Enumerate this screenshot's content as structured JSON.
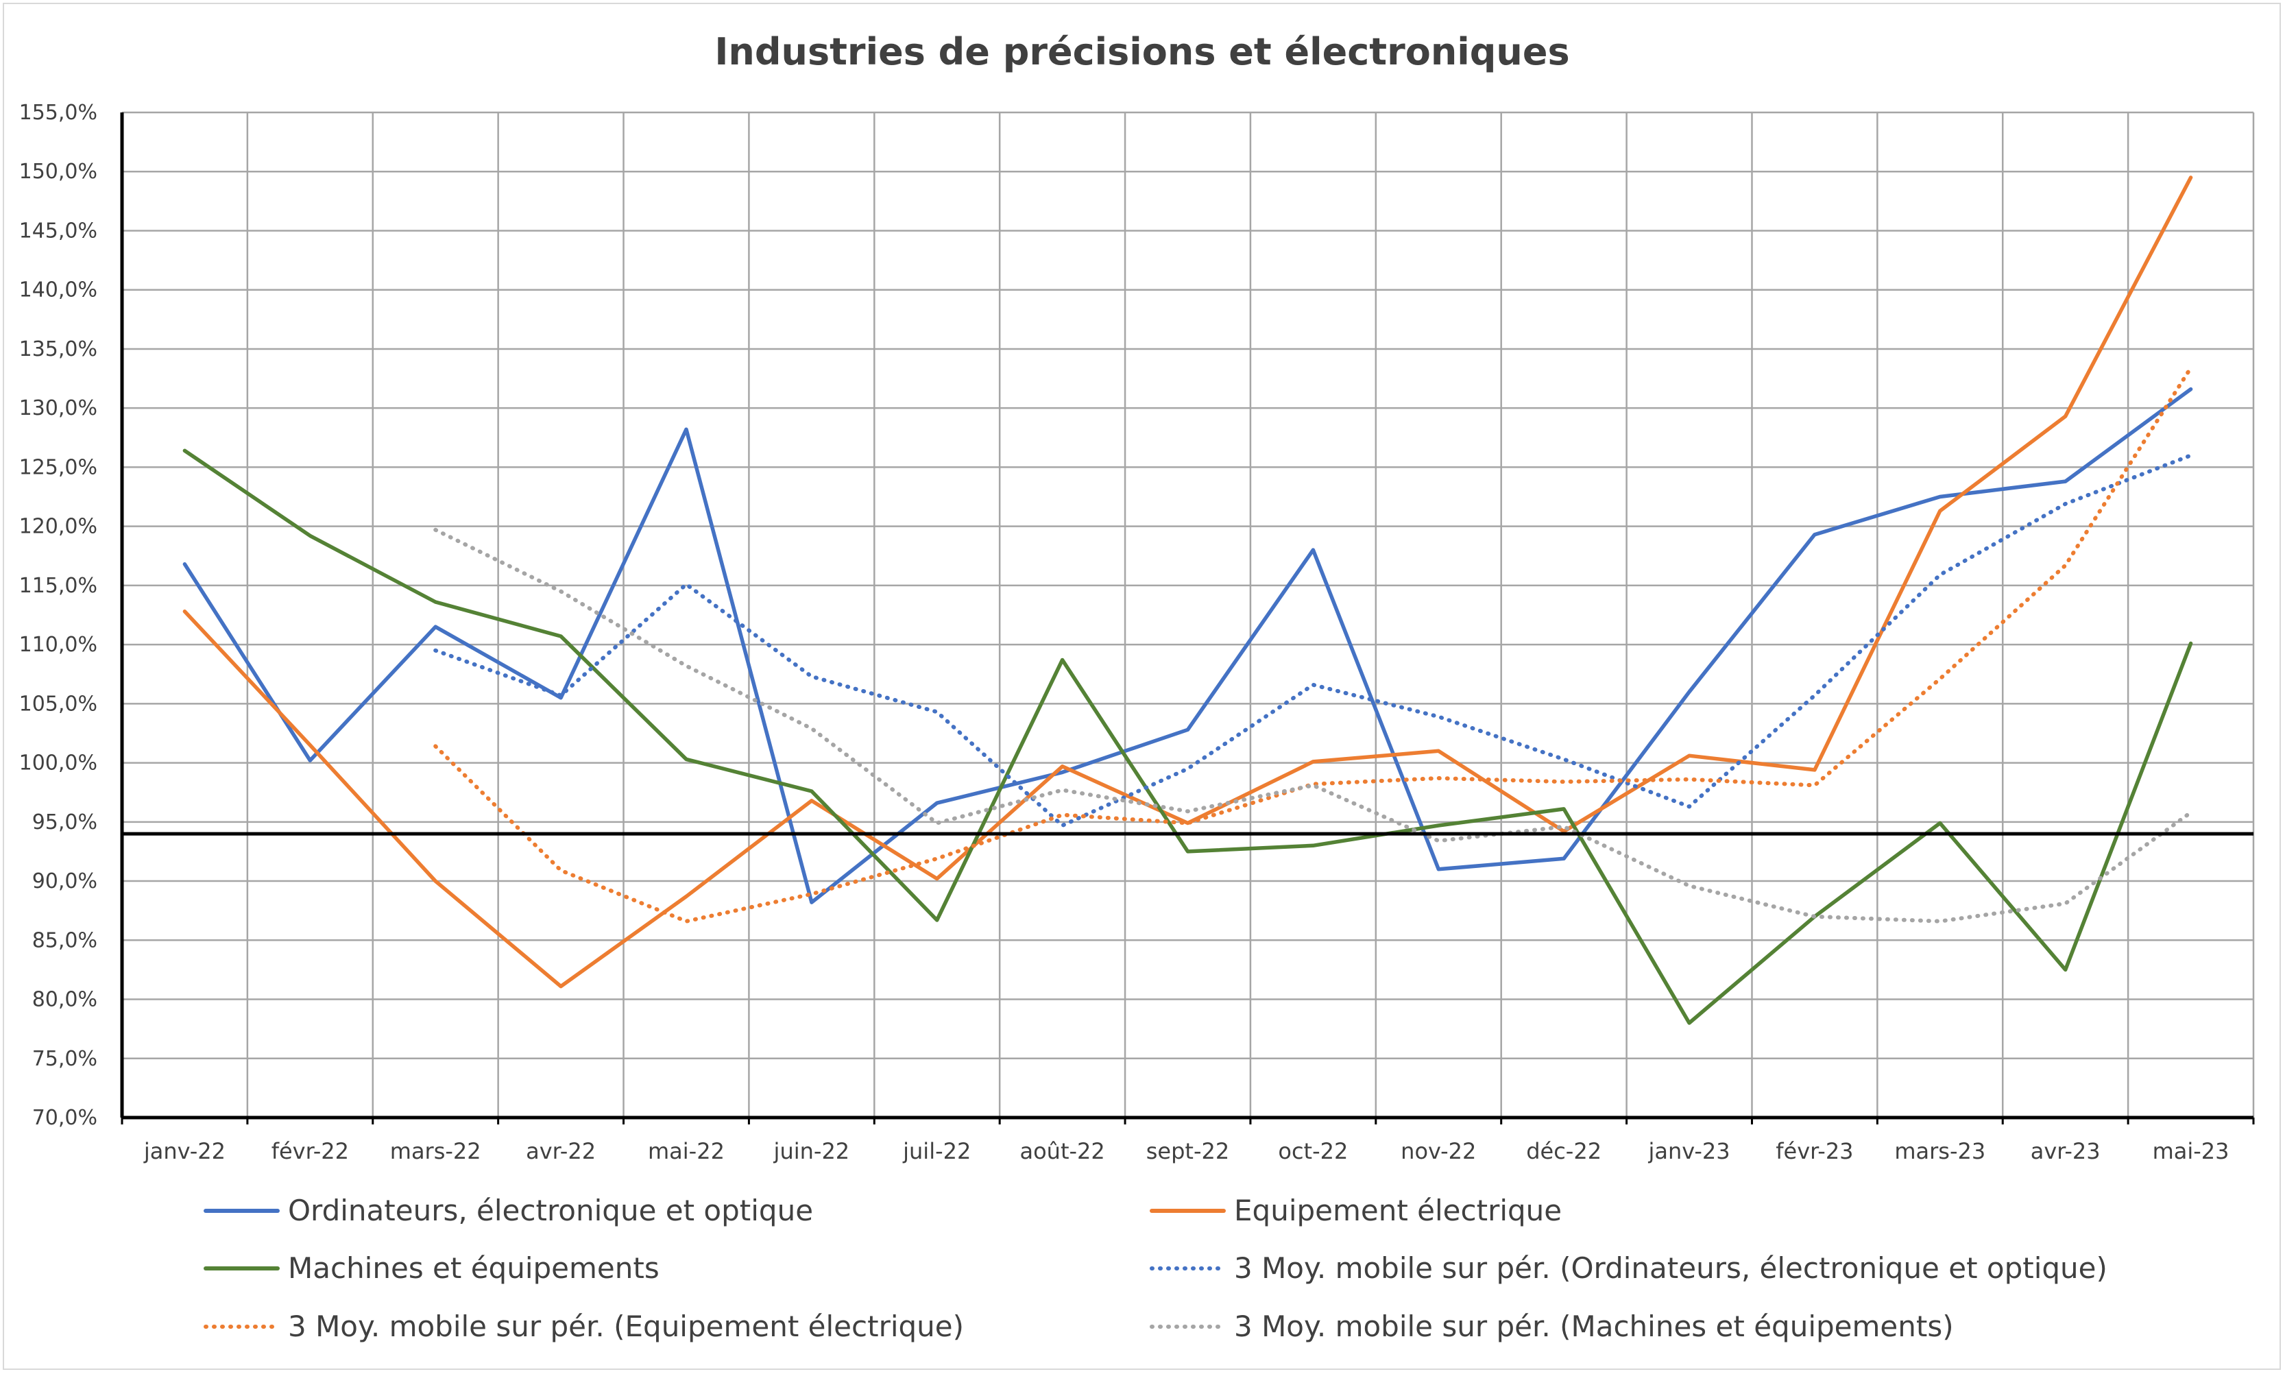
{
  "chart_data": {
    "type": "line",
    "title": "Industries de précisions et électroniques",
    "xlabel": "",
    "ylabel": "",
    "ylim": [
      70,
      155
    ],
    "ytick_step": 5,
    "ytick_labels": [
      "70,0%",
      "75,0%",
      "80,0%",
      "85,0%",
      "90,0%",
      "95,0%",
      "100,0%",
      "105,0%",
      "110,0%",
      "115,0%",
      "120,0%",
      "125,0%",
      "130,0%",
      "135,0%",
      "140,0%",
      "145,0%",
      "150,0%",
      "155,0%"
    ],
    "grid": true,
    "legend_position": "bottom",
    "categories": [
      "janv-22",
      "févr-22",
      "mars-22",
      "avr-22",
      "mai-22",
      "juin-22",
      "juil-22",
      "août-22",
      "sept-22",
      "oct-22",
      "nov-22",
      "déc-22",
      "janv-23",
      "févr-23",
      "mars-23",
      "avr-23",
      "mai-23"
    ],
    "reference_line": {
      "value": 94,
      "color": "#000000"
    },
    "series": [
      {
        "name": "Ordinateurs, électronique et optique",
        "color": "#4472C4",
        "style": "solid",
        "values": [
          116.8,
          100.2,
          111.5,
          105.5,
          128.2,
          88.2,
          96.6,
          99.2,
          102.8,
          118.0,
          91.0,
          91.9,
          106.0,
          119.3,
          122.5,
          123.8,
          131.6
        ]
      },
      {
        "name": "Equipement électrique",
        "color": "#ED7D31",
        "style": "solid",
        "values": [
          112.8,
          101.5,
          90.0,
          81.1,
          88.7,
          96.8,
          90.2,
          99.7,
          94.9,
          100.1,
          101.0,
          94.2,
          100.6,
          99.4,
          121.3,
          129.3,
          149.5
        ]
      },
      {
        "name": "Machines et équipements",
        "color": "#548235",
        "style": "solid",
        "values": [
          126.4,
          119.2,
          113.6,
          110.7,
          100.3,
          97.6,
          86.7,
          108.7,
          92.5,
          93.0,
          94.7,
          96.1,
          78.0,
          87.0,
          94.9,
          82.5,
          110.1
        ]
      },
      {
        "name": "3 Moy. mobile sur pér. (Ordinateurs, électronique et optique)",
        "color": "#4472C4",
        "style": "dotted",
        "values": [
          null,
          null,
          109.5,
          105.7,
          115.1,
          107.3,
          104.3,
          94.7,
          99.5,
          106.6,
          103.9,
          100.3,
          96.3,
          105.7,
          115.9,
          121.9,
          126.0
        ]
      },
      {
        "name": "3 Moy. mobile sur pér. (Equipement électrique)",
        "color": "#ED7D31",
        "style": "dotted",
        "values": [
          null,
          null,
          101.4,
          90.9,
          86.6,
          88.9,
          91.9,
          95.6,
          94.9,
          98.2,
          98.7,
          98.4,
          98.6,
          98.1,
          107.1,
          116.7,
          133.4
        ]
      },
      {
        "name": "3 Moy. mobile sur pér. (Machines et équipements)",
        "color": "#A5A5A5",
        "style": "dotted",
        "values": [
          null,
          null,
          119.7,
          114.5,
          108.2,
          102.9,
          94.9,
          97.7,
          95.9,
          98.1,
          93.4,
          94.6,
          89.6,
          87.0,
          86.6,
          88.1,
          95.8
        ]
      }
    ]
  }
}
